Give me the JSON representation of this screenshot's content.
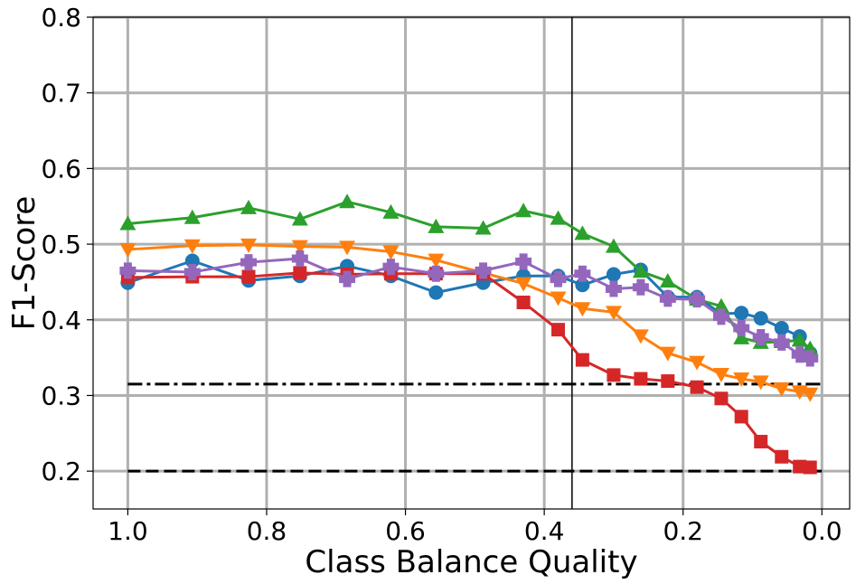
{
  "chart_data": {
    "type": "line",
    "title": "",
    "xlabel": "Class Balance Quality",
    "ylabel": "F1-Score",
    "xlim": [
      1.05,
      -0.04
    ],
    "ylim": [
      0.15,
      0.8
    ],
    "x_inverted": true,
    "grid": true,
    "xticks": [
      1.0,
      0.8,
      0.6,
      0.4,
      0.2,
      0.0
    ],
    "yticks": [
      0.2,
      0.3,
      0.4,
      0.5,
      0.6,
      0.7,
      0.8
    ],
    "xtick_labels": [
      "1.0",
      "0.8",
      "0.6",
      "0.4",
      "0.2",
      "0.0"
    ],
    "ytick_labels": [
      "0.2",
      "0.3",
      "0.4",
      "0.5",
      "0.6",
      "0.7",
      "0.8"
    ],
    "x": [
      1.0,
      0.907,
      0.826,
      0.752,
      0.684,
      0.621,
      0.556,
      0.488,
      0.43,
      0.38,
      0.345,
      0.3,
      0.261,
      0.222,
      0.18,
      0.145,
      0.116,
      0.088,
      0.058,
      0.032,
      0.017
    ],
    "series": [
      {
        "color": "#1f77b4",
        "marker": "circle",
        "values": [
          0.449,
          0.478,
          0.452,
          0.458,
          0.471,
          0.458,
          0.436,
          0.449,
          0.458,
          0.458,
          0.446,
          0.46,
          0.466,
          0.43,
          0.43,
          0.408,
          0.409,
          0.402,
          0.389,
          0.378,
          0.356
        ]
      },
      {
        "color": "#ff7f0e",
        "marker": "triangle-down",
        "values": [
          0.493,
          0.498,
          0.499,
          0.497,
          0.496,
          0.49,
          0.479,
          0.462,
          0.448,
          0.429,
          0.415,
          0.41,
          0.379,
          0.356,
          0.344,
          0.328,
          0.322,
          0.318,
          0.309,
          0.305,
          0.302
        ]
      },
      {
        "color": "#2ca02c",
        "marker": "triangle-up",
        "values": [
          0.527,
          0.535,
          0.548,
          0.533,
          0.556,
          0.542,
          0.523,
          0.521,
          0.544,
          0.534,
          0.514,
          0.497,
          0.464,
          0.451,
          0.427,
          0.418,
          0.376,
          0.37,
          0.371,
          0.373,
          0.362
        ]
      },
      {
        "color": "#d62728",
        "marker": "square",
        "values": [
          0.456,
          0.457,
          0.457,
          0.462,
          0.46,
          0.461,
          0.461,
          0.461,
          0.423,
          0.387,
          0.347,
          0.327,
          0.322,
          0.319,
          0.311,
          0.296,
          0.272,
          0.239,
          0.219,
          0.206,
          0.205
        ]
      },
      {
        "color": "#9467bd",
        "marker": "plus",
        "values": [
          0.465,
          0.463,
          0.476,
          0.481,
          0.454,
          0.47,
          0.461,
          0.465,
          0.477,
          0.454,
          0.461,
          0.441,
          0.443,
          0.428,
          0.427,
          0.404,
          0.389,
          0.377,
          0.37,
          0.354,
          0.349
        ]
      }
    ],
    "reference_lines": [
      {
        "orientation": "horizontal",
        "style": "dashdot",
        "color": "#000000",
        "y": 0.315,
        "x_from": 1.0,
        "x_to": 0.0
      },
      {
        "orientation": "horizontal",
        "style": "dashed",
        "color": "#000000",
        "y": 0.2,
        "x_from": 1.0,
        "x_to": 0.0
      },
      {
        "orientation": "vertical",
        "style": "solid",
        "color": "#000000",
        "x": 0.36
      }
    ]
  }
}
